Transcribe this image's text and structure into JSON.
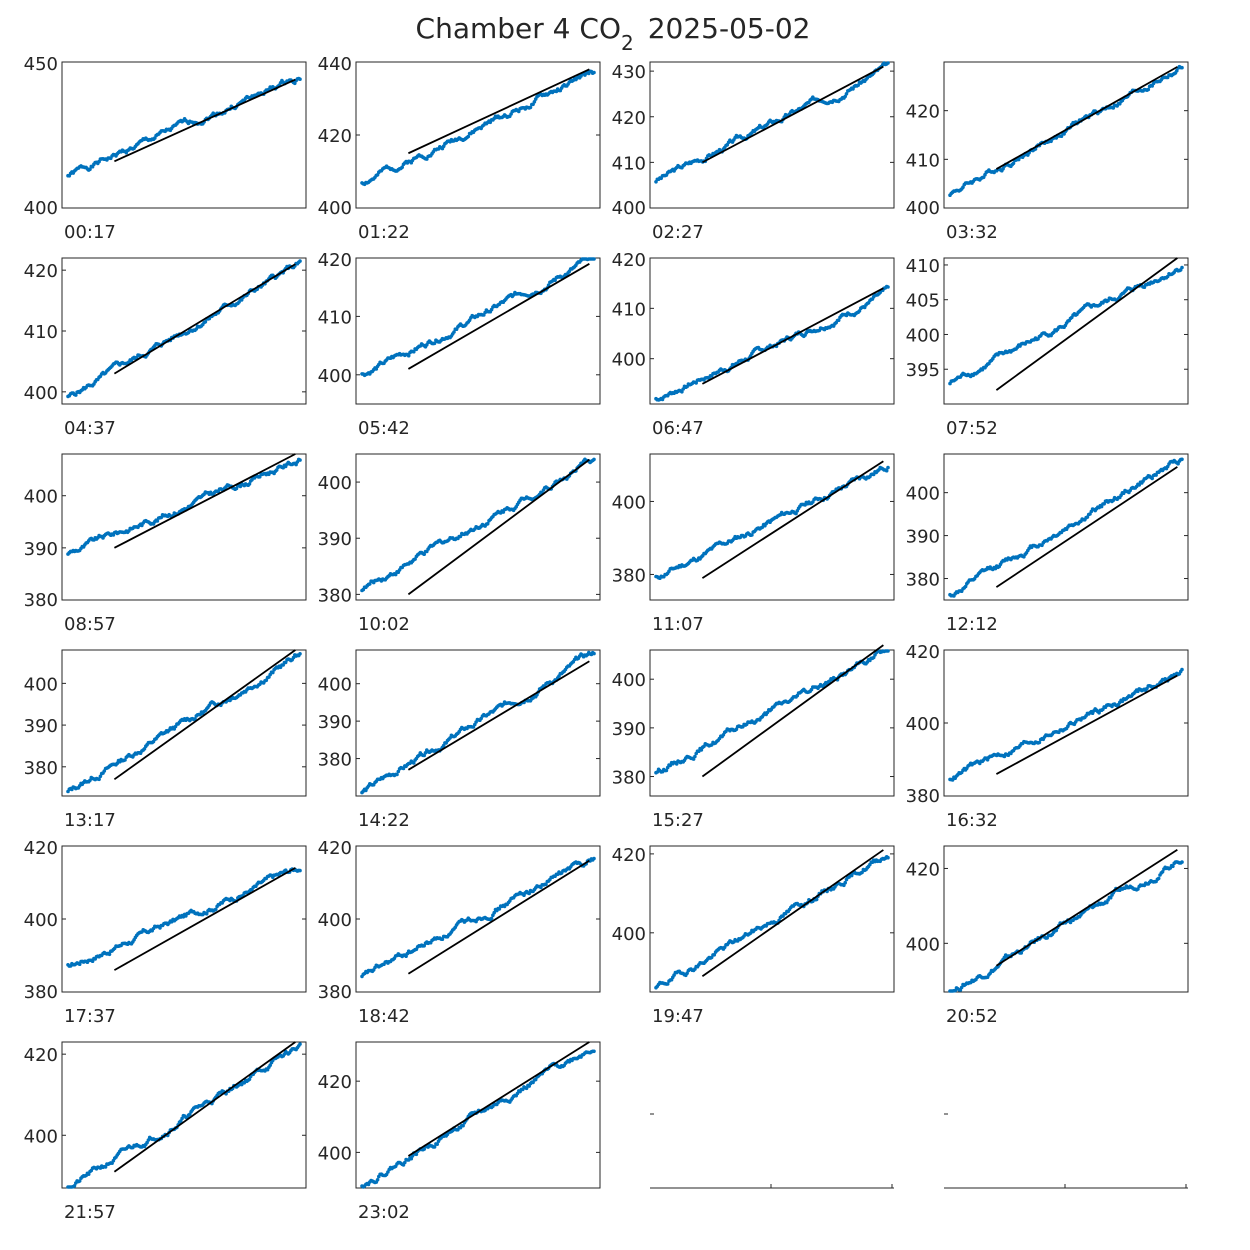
{
  "figure": {
    "title_prefix": "Chamber 4 CO",
    "title_subscript": "2",
    "title_date": "2025-05-02"
  },
  "style": {
    "point_color": "#0072BD",
    "fit_color": "#000000",
    "axis_color": "#262626",
    "background": "#ffffff"
  },
  "chart_data": [
    {
      "type": "scatter",
      "label": "00:17",
      "ylim": [
        400,
        450
      ],
      "yticks": [
        400,
        450
      ],
      "start": 411,
      "end": 445,
      "fit_start": 416,
      "fit_end": 444,
      "seed": 1
    },
    {
      "type": "scatter",
      "label": "01:22",
      "ylim": [
        400,
        440
      ],
      "yticks": [
        400,
        420,
        440
      ],
      "start": 407,
      "end": 437,
      "fit_start": 415,
      "fit_end": 438,
      "seed": 2
    },
    {
      "type": "scatter",
      "label": "02:27",
      "ylim": [
        400,
        432
      ],
      "yticks": [
        400,
        410,
        420,
        430
      ],
      "start": 406,
      "end": 431,
      "fit_start": 410,
      "fit_end": 431,
      "seed": 3
    },
    {
      "type": "scatter",
      "label": "03:32",
      "ylim": [
        400,
        430
      ],
      "yticks": [
        400,
        410,
        420
      ],
      "start": 403,
      "end": 429,
      "fit_start": 408,
      "fit_end": 429,
      "seed": 4
    },
    {
      "type": "scatter",
      "label": "04:37",
      "ylim": [
        398,
        422
      ],
      "yticks": [
        400,
        410,
        420
      ],
      "start": 399,
      "end": 421,
      "fit_start": 403,
      "fit_end": 421,
      "seed": 5
    },
    {
      "type": "scatter",
      "label": "05:42",
      "ylim": [
        395,
        420
      ],
      "yticks": [
        400,
        410,
        420
      ],
      "start": 400,
      "end": 420,
      "fit_start": 401,
      "fit_end": 419,
      "seed": 6
    },
    {
      "type": "scatter",
      "label": "06:47",
      "ylim": [
        391,
        420
      ],
      "yticks": [
        400,
        410,
        420
      ],
      "start": 392,
      "end": 413,
      "fit_start": 395,
      "fit_end": 414,
      "seed": 7
    },
    {
      "type": "scatter",
      "label": "07:52",
      "ylim": [
        390,
        411
      ],
      "yticks": [
        395,
        400,
        405,
        410
      ],
      "start": 393,
      "end": 410,
      "fit_start": 392,
      "fit_end": 411,
      "seed": 8
    },
    {
      "type": "scatter",
      "label": "08:57",
      "ylim": [
        380,
        408
      ],
      "yticks": [
        380,
        390,
        400
      ],
      "start": 389,
      "end": 407,
      "fit_start": 390,
      "fit_end": 408,
      "seed": 9
    },
    {
      "type": "scatter",
      "label": "10:02",
      "ylim": [
        379,
        405
      ],
      "yticks": [
        380,
        390,
        400
      ],
      "start": 381,
      "end": 404,
      "fit_start": 380,
      "fit_end": 404,
      "seed": 10
    },
    {
      "type": "scatter",
      "label": "11:07",
      "ylim": [
        373,
        413
      ],
      "yticks": [
        380,
        400
      ],
      "start": 379,
      "end": 410,
      "fit_start": 379,
      "fit_end": 411,
      "seed": 11
    },
    {
      "type": "scatter",
      "label": "12:12",
      "ylim": [
        375,
        409
      ],
      "yticks": [
        380,
        390,
        400
      ],
      "start": 376,
      "end": 408,
      "fit_start": 378,
      "fit_end": 406,
      "seed": 12
    },
    {
      "type": "scatter",
      "label": "13:17",
      "ylim": [
        373,
        408
      ],
      "yticks": [
        380,
        390,
        400
      ],
      "start": 374,
      "end": 407,
      "fit_start": 377,
      "fit_end": 408,
      "seed": 13
    },
    {
      "type": "scatter",
      "label": "14:22",
      "ylim": [
        370,
        409
      ],
      "yticks": [
        380,
        390,
        400
      ],
      "start": 371,
      "end": 408,
      "fit_start": 377,
      "fit_end": 406,
      "seed": 14
    },
    {
      "type": "scatter",
      "label": "15:27",
      "ylim": [
        376,
        406
      ],
      "yticks": [
        380,
        390,
        400
      ],
      "start": 381,
      "end": 406,
      "fit_start": 380,
      "fit_end": 407,
      "seed": 15
    },
    {
      "type": "scatter",
      "label": "16:32",
      "ylim": [
        380,
        420
      ],
      "yticks": [
        380,
        400,
        420
      ],
      "start": 385,
      "end": 414,
      "fit_start": 386,
      "fit_end": 413,
      "seed": 16
    },
    {
      "type": "scatter",
      "label": "17:37",
      "ylim": [
        380,
        420
      ],
      "yticks": [
        380,
        400,
        420
      ],
      "start": 387,
      "end": 414,
      "fit_start": 386,
      "fit_end": 414,
      "seed": 17
    },
    {
      "type": "scatter",
      "label": "18:42",
      "ylim": [
        380,
        420
      ],
      "yticks": [
        380,
        400,
        420
      ],
      "start": 384,
      "end": 417,
      "fit_start": 385,
      "fit_end": 416,
      "seed": 18
    },
    {
      "type": "scatter",
      "label": "19:47",
      "ylim": [
        385,
        422
      ],
      "yticks": [
        400,
        420
      ],
      "start": 386,
      "end": 420,
      "fit_start": 389,
      "fit_end": 421,
      "seed": 19
    },
    {
      "type": "scatter",
      "label": "20:52",
      "ylim": [
        387,
        426
      ],
      "yticks": [
        400,
        420
      ],
      "start": 387,
      "end": 423,
      "fit_start": 394,
      "fit_end": 425,
      "seed": 20
    },
    {
      "type": "scatter",
      "label": "21:57",
      "ylim": [
        387,
        423
      ],
      "yticks": [
        400,
        420
      ],
      "start": 387,
      "end": 422,
      "fit_start": 391,
      "fit_end": 423,
      "seed": 21
    },
    {
      "type": "scatter",
      "label": "23:02",
      "ylim": [
        390,
        431
      ],
      "yticks": [
        400,
        420
      ],
      "start": 391,
      "end": 430,
      "fit_start": 399,
      "fit_end": 431,
      "seed": 22
    },
    {
      "type": "empty",
      "label": "",
      "ylim": [
        0,
        1
      ],
      "yticks": []
    },
    {
      "type": "empty",
      "label": "",
      "ylim": [
        0,
        1
      ],
      "yticks": []
    }
  ]
}
